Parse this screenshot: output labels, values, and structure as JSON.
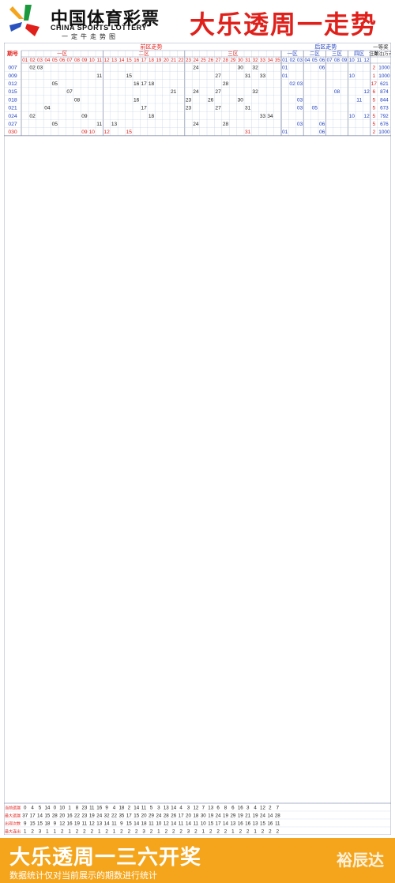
{
  "header": {
    "brand_cn": "中国体育彩票",
    "brand_en": "CHINA SPORTS LOTTERY",
    "brand_sub": "一定牛走势图",
    "title": "大乐透周一走势",
    "logo_colors": [
      "#f4a51c",
      "#1a9a3c",
      "#2a52be",
      "#e0201b"
    ]
  },
  "footer": {
    "title": "大乐透周一三六开奖",
    "note": "数据统计仅对当前展示的期数进行统计",
    "watermark": "裕辰达",
    "background": "#f4a51c"
  },
  "colors": {
    "front_number": "#222222",
    "back_number": "#1f3fbf",
    "highlight": "#e0201b",
    "issue": "#1f3fbf",
    "grid": "#c9d3e3",
    "group_line": "#8a96b0",
    "tail_red": "#e0201b",
    "stat_label": "#e0201b"
  },
  "chart_data": {
    "type": "table",
    "title": "大乐透周一走势",
    "headers": {
      "issue": "期号",
      "front": "前区走势",
      "back": "后区走势",
      "front_zones": [
        "一区",
        "二区",
        "三区"
      ],
      "back_zones": [
        "一区",
        "二区",
        "三区",
        "四区"
      ],
      "first_prize": "一等奖",
      "count": "注数",
      "amount": "单注(万元)"
    },
    "front_numbers": [
      "01",
      "02",
      "03",
      "04",
      "05",
      "06",
      "07",
      "08",
      "09",
      "10",
      "11",
      "12",
      "13",
      "14",
      "15",
      "16",
      "17",
      "18",
      "19",
      "20",
      "21",
      "22",
      "23",
      "24",
      "25",
      "26",
      "27",
      "28",
      "29",
      "30",
      "31",
      "32",
      "33",
      "34",
      "35"
    ],
    "back_numbers": [
      "01",
      "02",
      "03",
      "04",
      "05",
      "06",
      "07",
      "08",
      "09",
      "10",
      "11",
      "12"
    ],
    "rows": [
      {
        "issue": "007",
        "front": [
          2,
          3,
          24,
          30,
          32
        ],
        "back": [
          1,
          6
        ],
        "count": 2,
        "amount": 1000
      },
      {
        "issue": "009",
        "front": [
          11,
          15,
          27,
          31,
          33
        ],
        "back": [
          1,
          10
        ],
        "count": 1,
        "amount": 1000
      },
      {
        "issue": "012",
        "front": [
          5,
          16,
          17,
          18,
          28
        ],
        "back": [
          2,
          3
        ],
        "count": 17,
        "amount": 621
      },
      {
        "issue": "015",
        "front": [
          7,
          21,
          24,
          27,
          32
        ],
        "back": [
          8,
          12
        ],
        "count": 6,
        "amount": 874
      },
      {
        "issue": "018",
        "front": [
          8,
          16,
          23,
          26,
          30
        ],
        "back": [
          3,
          11
        ],
        "count": 5,
        "amount": 844
      },
      {
        "issue": "021",
        "front": [
          4,
          17,
          23,
          27,
          31
        ],
        "back": [
          3,
          5
        ],
        "count": 5,
        "amount": 673
      },
      {
        "issue": "024",
        "front": [
          2,
          9,
          18,
          33,
          34
        ],
        "back": [
          10,
          12
        ],
        "count": 5,
        "amount": 792
      },
      {
        "issue": "027",
        "front": [
          5,
          11,
          13,
          24,
          28
        ],
        "back": [
          3,
          6
        ],
        "count": 5,
        "amount": 676
      },
      {
        "issue": "030",
        "front": [
          9,
          10,
          12,
          15,
          31
        ],
        "back": [
          1,
          6
        ],
        "count": 2,
        "amount": 1000
      }
    ],
    "stats": {
      "labels": [
        "当前遗漏",
        "最大遗漏",
        "出现次数",
        "最大连出"
      ],
      "current_miss": [
        0,
        4,
        5,
        14,
        0,
        10,
        1,
        8,
        23,
        11,
        16,
        9,
        4,
        18,
        2,
        14,
        11,
        5,
        3,
        13,
        14,
        4,
        3,
        12,
        7,
        13,
        6,
        8,
        6,
        16,
        3,
        4,
        12,
        2,
        7
      ],
      "max_miss": [
        37,
        17,
        14,
        15,
        28,
        20,
        16,
        22,
        23,
        19,
        24,
        32,
        22,
        35,
        17,
        15,
        20,
        29,
        24,
        28,
        26,
        17,
        20,
        18,
        30,
        19,
        24,
        19,
        29,
        19,
        21,
        19,
        24,
        14,
        28
      ],
      "appear_count": [
        9,
        15,
        15,
        18,
        9,
        12,
        16,
        19,
        11,
        12,
        13,
        14,
        11,
        9,
        15,
        14,
        18,
        11,
        10,
        12,
        14,
        11,
        14,
        11,
        10,
        15,
        17,
        14,
        13,
        16,
        16,
        13,
        15,
        16,
        11
      ],
      "max_consecutive": [
        1,
        2,
        3,
        1,
        1,
        2,
        1,
        2,
        2,
        2,
        1,
        2,
        1,
        2,
        2,
        2,
        3,
        2,
        1,
        2,
        2,
        2,
        3,
        2,
        1,
        2,
        2,
        2,
        1,
        2,
        2,
        1,
        2,
        2,
        2
      ]
    }
  }
}
